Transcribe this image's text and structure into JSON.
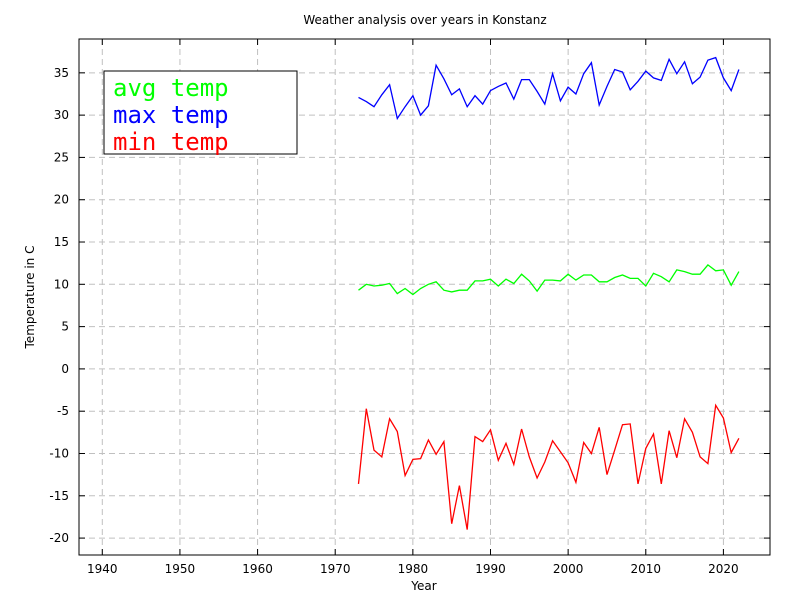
{
  "chart_data": {
    "type": "line",
    "title": "Weather analysis over years in Konstanz",
    "xlabel": "Year",
    "ylabel": "Temperature in C",
    "xlim": [
      1937,
      2026
    ],
    "ylim": [
      -22,
      39
    ],
    "xticks": [
      1940,
      1950,
      1960,
      1970,
      1980,
      1990,
      2000,
      2010,
      2020
    ],
    "yticks": [
      -20,
      -15,
      -10,
      -5,
      0,
      5,
      10,
      15,
      20,
      25,
      30,
      35
    ],
    "grid": true,
    "legend_position": "top-left",
    "x": [
      1973,
      1974,
      1975,
      1976,
      1977,
      1978,
      1979,
      1980,
      1981,
      1982,
      1983,
      1984,
      1985,
      1986,
      1987,
      1988,
      1989,
      1990,
      1991,
      1992,
      1993,
      1994,
      1995,
      1996,
      1997,
      1998,
      1999,
      2000,
      2001,
      2002,
      2003,
      2004,
      2005,
      2006,
      2007,
      2008,
      2009,
      2010,
      2011,
      2012,
      2013,
      2014,
      2015,
      2016,
      2017,
      2018,
      2019,
      2020,
      2021,
      2022
    ],
    "series": [
      {
        "name": "avg temp",
        "color": "#00ff00",
        "values": [
          9.3,
          10.0,
          9.8,
          9.9,
          10.1,
          8.9,
          9.5,
          8.8,
          9.5,
          10.0,
          10.3,
          9.3,
          9.1,
          9.3,
          9.3,
          10.4,
          10.4,
          10.6,
          9.8,
          10.6,
          10.1,
          11.2,
          10.4,
          9.2,
          10.5,
          10.5,
          10.4,
          11.2,
          10.5,
          11.1,
          11.1,
          10.3,
          10.3,
          10.8,
          11.1,
          10.7,
          10.7,
          9.8,
          11.3,
          10.9,
          10.3,
          11.7,
          11.5,
          11.2,
          11.2,
          12.3,
          11.6,
          11.7,
          9.9,
          11.5
        ]
      },
      {
        "name": "max temp",
        "color": "#0000ff",
        "values": [
          32.1,
          31.6,
          31.0,
          32.4,
          33.6,
          29.6,
          31.0,
          32.3,
          30.0,
          31.1,
          35.9,
          34.3,
          32.4,
          33.1,
          31.0,
          32.3,
          31.3,
          32.9,
          33.4,
          33.8,
          31.9,
          34.2,
          34.2,
          32.8,
          31.3,
          34.9,
          31.7,
          33.3,
          32.5,
          34.9,
          36.2,
          31.2,
          33.4,
          35.4,
          35.1,
          33.0,
          34.0,
          35.2,
          34.4,
          34.1,
          36.6,
          34.9,
          36.3,
          33.7,
          34.5,
          36.5,
          36.8,
          34.4,
          32.9,
          35.4
        ]
      },
      {
        "name": "min temp",
        "color": "#ff0000",
        "values": [
          -13.6,
          -4.7,
          -9.6,
          -10.4,
          -5.9,
          -7.4,
          -12.6,
          -10.7,
          -10.6,
          -8.4,
          -10.1,
          -8.6,
          -18.3,
          -13.8,
          -19.0,
          -8.0,
          -8.6,
          -7.2,
          -10.8,
          -8.8,
          -11.3,
          -7.1,
          -10.4,
          -12.9,
          -11.0,
          -8.5,
          -9.8,
          -11.1,
          -13.4,
          -8.7,
          -10.0,
          -6.9,
          -12.5,
          -9.6,
          -6.6,
          -6.5,
          -13.6,
          -9.4,
          -7.7,
          -13.6,
          -7.3,
          -10.5,
          -5.9,
          -7.5,
          -10.4,
          -11.2,
          -4.3,
          -5.8,
          -9.9,
          -8.2
        ]
      }
    ]
  }
}
